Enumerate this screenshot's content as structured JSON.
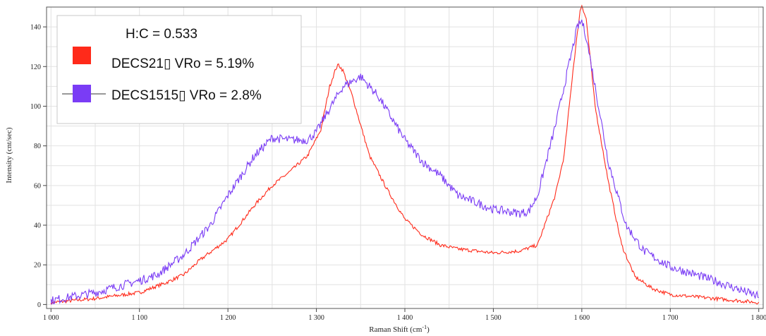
{
  "chart_data": {
    "type": "line",
    "title": "",
    "xlabel": "Raman Shift (cm",
    "xlabel_sup": "-1",
    "xlabel_tail": ")",
    "ylabel": "Intensity (cnt/sec)",
    "xlim": [
      995,
      1805
    ],
    "ylim": [
      -2,
      150
    ],
    "x_ticks": [
      1000,
      1100,
      1200,
      1300,
      1400,
      1500,
      1600,
      1700,
      1800
    ],
    "x_tick_labels": [
      "1 000",
      "1 100",
      "1 200",
      "1 300",
      "1 400",
      "1 500",
      "1 600",
      "1 700",
      "1 800"
    ],
    "y_ticks": [
      0,
      20,
      40,
      60,
      80,
      100,
      120,
      140
    ],
    "y_tick_labels": [
      "0",
      "20",
      "40",
      "60",
      "80",
      "100",
      "120",
      "140"
    ],
    "grid": true,
    "legend_position": "top-left",
    "legend_title": "H:C = 0.533",
    "series": [
      {
        "name": "DECS21▯ VRo = 5.19%",
        "color": "#ff2a1a",
        "points": [
          [
            1000,
            1
          ],
          [
            1050,
            3
          ],
          [
            1100,
            6
          ],
          [
            1130,
            11
          ],
          [
            1150,
            15
          ],
          [
            1170,
            23
          ],
          [
            1200,
            33
          ],
          [
            1230,
            50
          ],
          [
            1250,
            60
          ],
          [
            1270,
            67
          ],
          [
            1290,
            75
          ],
          [
            1305,
            88
          ],
          [
            1315,
            110
          ],
          [
            1322,
            119
          ],
          [
            1325,
            121
          ],
          [
            1330,
            118
          ],
          [
            1340,
            106
          ],
          [
            1360,
            75
          ],
          [
            1380,
            58
          ],
          [
            1400,
            43
          ],
          [
            1420,
            35
          ],
          [
            1440,
            30
          ],
          [
            1460,
            28
          ],
          [
            1500,
            26
          ],
          [
            1530,
            27
          ],
          [
            1550,
            30
          ],
          [
            1570,
            55
          ],
          [
            1580,
            75
          ],
          [
            1590,
            118
          ],
          [
            1598,
            148
          ],
          [
            1600,
            151
          ],
          [
            1605,
            144
          ],
          [
            1615,
            100
          ],
          [
            1630,
            62
          ],
          [
            1645,
            30
          ],
          [
            1660,
            14
          ],
          [
            1680,
            8
          ],
          [
            1700,
            5
          ],
          [
            1750,
            3
          ],
          [
            1800,
            1
          ]
        ]
      },
      {
        "name": "DECS1515▯ VRo = 2.8%",
        "color": "#7a3cf5",
        "points": [
          [
            1000,
            2
          ],
          [
            1050,
            6
          ],
          [
            1100,
            12
          ],
          [
            1120,
            15
          ],
          [
            1150,
            25
          ],
          [
            1180,
            40
          ],
          [
            1200,
            55
          ],
          [
            1230,
            75
          ],
          [
            1250,
            84
          ],
          [
            1270,
            83
          ],
          [
            1290,
            83
          ],
          [
            1300,
            87
          ],
          [
            1310,
            95
          ],
          [
            1330,
            110
          ],
          [
            1350,
            115
          ],
          [
            1370,
            105
          ],
          [
            1400,
            83
          ],
          [
            1420,
            72
          ],
          [
            1440,
            65
          ],
          [
            1460,
            55
          ],
          [
            1500,
            48
          ],
          [
            1530,
            46
          ],
          [
            1540,
            47
          ],
          [
            1550,
            55
          ],
          [
            1570,
            90
          ],
          [
            1585,
            120
          ],
          [
            1595,
            140
          ],
          [
            1600,
            143
          ],
          [
            1605,
            135
          ],
          [
            1615,
            110
          ],
          [
            1630,
            72
          ],
          [
            1650,
            40
          ],
          [
            1670,
            27
          ],
          [
            1700,
            19
          ],
          [
            1750,
            12
          ],
          [
            1800,
            4
          ]
        ]
      }
    ]
  }
}
